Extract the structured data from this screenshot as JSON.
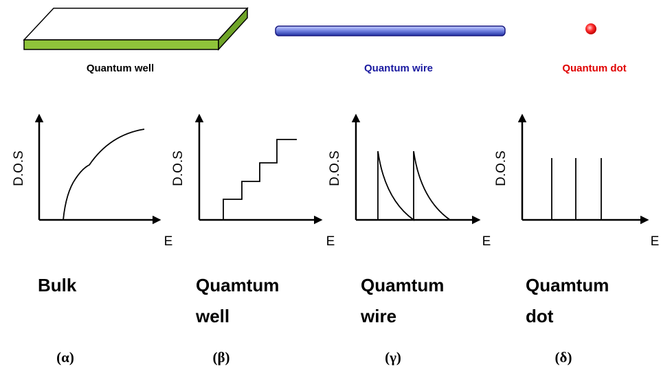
{
  "structures": [
    {
      "label": "Quantum well"
    },
    {
      "label": "Quantum wire"
    },
    {
      "label": "Quantum dot"
    }
  ],
  "panels": [
    {
      "y_label": "D.O.S",
      "x_label": "E",
      "name_lines": [
        "Bulk"
      ],
      "caption": "(α)"
    },
    {
      "y_label": "D.O.S",
      "x_label": "E",
      "name_lines": [
        "Quamtum",
        "well"
      ],
      "caption": "(β)"
    },
    {
      "y_label": "D.O.S",
      "x_label": "E",
      "name_lines": [
        "Quamtum",
        "wire"
      ],
      "caption": "(γ)"
    },
    {
      "y_label": "D.O.S",
      "x_label": "E",
      "name_lines": [
        "Quamtum",
        "dot"
      ],
      "caption": "(δ)"
    }
  ]
}
